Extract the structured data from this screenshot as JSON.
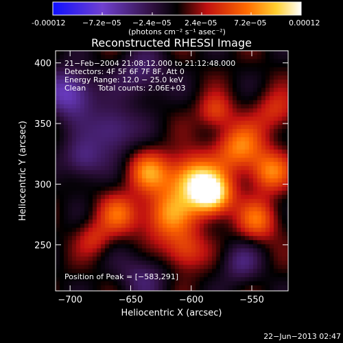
{
  "colorbar": {
    "tick_labels": [
      "-0.00012",
      "−7.2e−05",
      "−2.4e−05",
      "2.4e−05",
      "7.2e−05",
      "0.00012"
    ],
    "units": "(photons cm⁻² s⁻¹ asec⁻²)"
  },
  "annotations": {
    "line1": "21−Feb−2004 21:08:12.000 to 21:12:48.000",
    "line2": "Detectors: 4F 5F 6F 7F 8F, Att 0",
    "line3": "Energy Range: 12.0 − 25.0 keV",
    "line4": "Clean     Total counts: 2.06E+03",
    "peak": "Position of Peak = [−583,291]"
  },
  "footer": "22−Jun−2013 02:47",
  "chart_data": {
    "type": "heatmap",
    "title": "Reconstructed RHESSI Image",
    "xlabel": "Heliocentric X (arcsec)",
    "ylabel": "Heliocentric Y (arcsec)",
    "xlim": [
      -712,
      -520
    ],
    "ylim": [
      212,
      410
    ],
    "xticks": [
      -700,
      -650,
      -600,
      -550
    ],
    "yticks": [
      250,
      300,
      350,
      400
    ],
    "xtick_labels": [
      "−700",
      "−650",
      "−600",
      "−550"
    ],
    "ytick_labels": [
      "250",
      "300",
      "350",
      "400"
    ],
    "colorscale": "blue-purple-black-red-orange-yellow-white",
    "vmin": -0.00012,
    "vmax": 0.00012,
    "peak_position": [
      -583,
      291
    ],
    "sources": [
      {
        "x": -583,
        "y": 291,
        "amp": 1.0,
        "sigma": 12
      },
      {
        "x": -600,
        "y": 305,
        "amp": 0.75,
        "sigma": 14
      },
      {
        "x": -620,
        "y": 275,
        "amp": 0.6,
        "sigma": 15
      },
      {
        "x": -635,
        "y": 310,
        "amp": 0.55,
        "sigma": 12
      },
      {
        "x": -560,
        "y": 330,
        "amp": 0.6,
        "sigma": 14
      },
      {
        "x": -535,
        "y": 310,
        "amp": 0.55,
        "sigma": 12
      },
      {
        "x": -545,
        "y": 270,
        "amp": 0.5,
        "sigma": 12
      },
      {
        "x": -660,
        "y": 275,
        "amp": 0.45,
        "sigma": 12
      },
      {
        "x": -605,
        "y": 245,
        "amp": 0.45,
        "sigma": 12
      },
      {
        "x": -580,
        "y": 360,
        "amp": 0.4,
        "sigma": 10
      },
      {
        "x": -530,
        "y": 360,
        "amp": 0.35,
        "sigma": 12
      },
      {
        "x": -680,
        "y": 255,
        "amp": 0.3,
        "sigma": 10
      },
      {
        "x": -700,
        "y": 375,
        "amp": -0.6,
        "sigma": 14
      },
      {
        "x": -665,
        "y": 345,
        "amp": -0.45,
        "sigma": 14
      },
      {
        "x": -690,
        "y": 320,
        "amp": -0.4,
        "sigma": 12
      },
      {
        "x": -640,
        "y": 390,
        "amp": -0.35,
        "sigma": 14
      },
      {
        "x": -560,
        "y": 235,
        "amp": -0.3,
        "sigma": 12
      },
      {
        "x": -640,
        "y": 225,
        "amp": -0.3,
        "sigma": 14
      }
    ]
  }
}
